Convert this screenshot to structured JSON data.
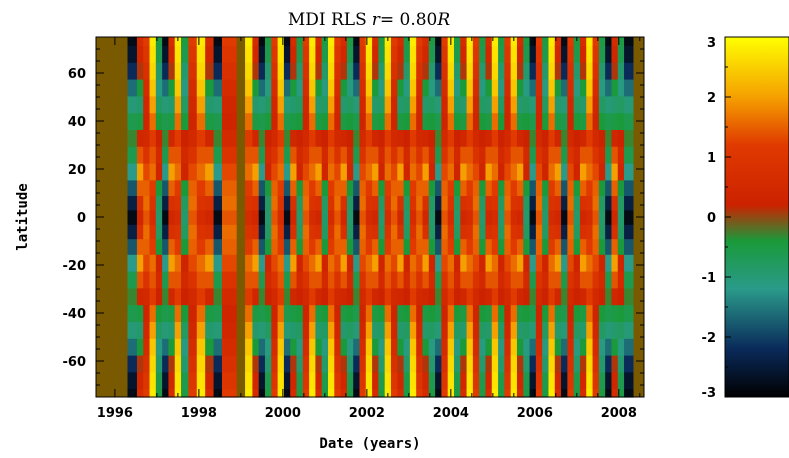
{
  "chart_data": {
    "type": "heatmap",
    "title_parts": {
      "prefix": "MDI RLS",
      "var": "r",
      "eq": "= 0.80",
      "unit": "R"
    },
    "xlabel": "Date (years)",
    "ylabel": "latitude",
    "xlim": [
      1995.55,
      2008.6
    ],
    "ylim": [
      -75,
      75
    ],
    "x_ticks": [
      1996,
      1998,
      2000,
      2002,
      2004,
      2006,
      2008
    ],
    "y_ticks": [
      60,
      40,
      20,
      0,
      -20,
      -40,
      -60
    ],
    "colorbar": {
      "range": [
        -3,
        3
      ],
      "ticks": [
        3,
        2,
        1,
        0,
        -1,
        -2,
        -3
      ],
      "stops": [
        {
          "v": -3,
          "color": "#000000"
        },
        {
          "v": -2.2,
          "color": "#0a2a5a"
        },
        {
          "v": -1.2,
          "color": "#2a9a8a"
        },
        {
          "v": -0.4,
          "color": "#1a9a3a"
        },
        {
          "v": 0.2,
          "color": "#cc2200"
        },
        {
          "v": 1.2,
          "color": "#e03a00"
        },
        {
          "v": 2.0,
          "color": "#f5a000"
        },
        {
          "v": 3,
          "color": "#ffff00"
        }
      ]
    },
    "no_data_color": "#7a5a00",
    "no_data_ranges": [
      [
        1995.55,
        1996.3
      ],
      [
        1998.9,
        1999.1
      ],
      [
        2008.35,
        2008.6
      ]
    ],
    "columns": [
      {
        "t": 1996.45,
        "p": "B"
      },
      {
        "t": 1996.6,
        "p": "A"
      },
      {
        "t": 1996.75,
        "p": "R"
      },
      {
        "t": 1996.9,
        "p": "Y"
      },
      {
        "t": 1997.05,
        "p": "G"
      },
      {
        "t": 1997.2,
        "p": "B"
      },
      {
        "t": 1997.35,
        "p": "A"
      },
      {
        "t": 1997.5,
        "p": "Y"
      },
      {
        "t": 1997.65,
        "p": "G"
      },
      {
        "t": 1997.85,
        "p": "R"
      },
      {
        "t": 1998.05,
        "p": "Y"
      },
      {
        "t": 1998.25,
        "p": "A"
      },
      {
        "t": 1998.45,
        "p": "B"
      },
      {
        "t": 1998.65,
        "p": "R"
      },
      {
        "t": 1999.2,
        "p": "Y"
      },
      {
        "t": 1999.35,
        "p": "A"
      },
      {
        "t": 1999.5,
        "p": "B"
      },
      {
        "t": 1999.65,
        "p": "G"
      },
      {
        "t": 1999.8,
        "p": "R"
      },
      {
        "t": 1999.95,
        "p": "Y"
      },
      {
        "t": 2000.1,
        "p": "B"
      },
      {
        "t": 2000.25,
        "p": "A"
      },
      {
        "t": 2000.4,
        "p": "G"
      },
      {
        "t": 2000.55,
        "p": "R"
      },
      {
        "t": 2000.7,
        "p": "Y"
      },
      {
        "t": 2000.85,
        "p": "A"
      },
      {
        "t": 2001.0,
        "p": "G"
      },
      {
        "t": 2001.15,
        "p": "Y"
      },
      {
        "t": 2001.3,
        "p": "R"
      },
      {
        "t": 2001.45,
        "p": "A"
      },
      {
        "t": 2001.6,
        "p": "G"
      },
      {
        "t": 2001.75,
        "p": "B"
      },
      {
        "t": 2001.9,
        "p": "R"
      },
      {
        "t": 2002.05,
        "p": "Y"
      },
      {
        "t": 2002.2,
        "p": "A"
      },
      {
        "t": 2002.35,
        "p": "G"
      },
      {
        "t": 2002.5,
        "p": "Y"
      },
      {
        "t": 2002.65,
        "p": "R"
      },
      {
        "t": 2002.8,
        "p": "A"
      },
      {
        "t": 2002.95,
        "p": "G"
      },
      {
        "t": 2003.1,
        "p": "Y"
      },
      {
        "t": 2003.25,
        "p": "R"
      },
      {
        "t": 2003.4,
        "p": "A"
      },
      {
        "t": 2003.55,
        "p": "G"
      },
      {
        "t": 2003.7,
        "p": "B"
      },
      {
        "t": 2003.85,
        "p": "R"
      },
      {
        "t": 2004.0,
        "p": "Y"
      },
      {
        "t": 2004.15,
        "p": "G"
      },
      {
        "t": 2004.3,
        "p": "A"
      },
      {
        "t": 2004.45,
        "p": "Y"
      },
      {
        "t": 2004.6,
        "p": "R"
      },
      {
        "t": 2004.75,
        "p": "G"
      },
      {
        "t": 2004.9,
        "p": "A"
      },
      {
        "t": 2005.05,
        "p": "Y"
      },
      {
        "t": 2005.2,
        "p": "G"
      },
      {
        "t": 2005.35,
        "p": "R"
      },
      {
        "t": 2005.5,
        "p": "Y"
      },
      {
        "t": 2005.65,
        "p": "A"
      },
      {
        "t": 2005.8,
        "p": "G"
      },
      {
        "t": 2005.95,
        "p": "B"
      },
      {
        "t": 2006.1,
        "p": "R"
      },
      {
        "t": 2006.25,
        "p": "G"
      },
      {
        "t": 2006.4,
        "p": "Y"
      },
      {
        "t": 2006.55,
        "p": "A"
      },
      {
        "t": 2006.7,
        "p": "B"
      },
      {
        "t": 2006.85,
        "p": "R"
      },
      {
        "t": 2007.0,
        "p": "G"
      },
      {
        "t": 2007.15,
        "p": "A"
      },
      {
        "t": 2007.3,
        "p": "Y"
      },
      {
        "t": 2007.45,
        "p": "R"
      },
      {
        "t": 2007.6,
        "p": "G"
      },
      {
        "t": 2007.75,
        "p": "B"
      },
      {
        "t": 2007.9,
        "p": "A"
      },
      {
        "t": 2008.05,
        "p": "G"
      },
      {
        "t": 2008.2,
        "p": "B"
      }
    ],
    "profiles": {
      "Y": [
        2.8,
        2.7,
        2.6,
        2.4,
        2.0,
        1.6,
        1.2,
        1.4,
        1.6,
        1.2,
        0.9,
        0.6,
        0.9,
        1.2,
        1.6,
        1.4,
        1.2,
        1.6,
        2.0,
        2.4,
        2.6,
        2.7,
        2.8
      ],
      "R": [
        1.2,
        1.0,
        0.8,
        0.6,
        0.4,
        0.3,
        0.5,
        0.9,
        1.3,
        1.5,
        1.6,
        1.4,
        1.6,
        1.5,
        1.3,
        0.9,
        0.5,
        0.3,
        0.4,
        0.6,
        0.8,
        1.0,
        1.2
      ],
      "G": [
        -0.5,
        -0.6,
        -0.9,
        -1.1,
        -0.8,
        -0.4,
        0.2,
        0.5,
        0.3,
        -0.4,
        -0.8,
        -0.9,
        -0.8,
        -0.4,
        0.3,
        0.5,
        0.2,
        -0.4,
        -0.8,
        -1.1,
        -0.9,
        -0.6,
        -0.5
      ],
      "B": [
        -2.8,
        -2.6,
        -2.2,
        -1.6,
        -1.0,
        -0.6,
        -0.3,
        -0.6,
        -1.2,
        -1.8,
        -2.4,
        -2.8,
        -2.4,
        -1.8,
        -1.2,
        -0.6,
        -0.3,
        -0.6,
        -1.0,
        -1.6,
        -2.2,
        -2.6,
        -2.8
      ],
      "A": [
        0.6,
        0.4,
        0.1,
        -0.4,
        -0.9,
        -0.5,
        0.4,
        1.4,
        2.0,
        1.5,
        0.8,
        0.4,
        0.8,
        1.5,
        2.0,
        1.4,
        0.4,
        -0.5,
        -0.9,
        -0.4,
        0.1,
        0.4,
        0.6
      ]
    },
    "profile_latitudes": [
      -75,
      -68,
      -61,
      -54,
      -47,
      -40,
      -33,
      -26,
      -19,
      -12,
      -6,
      0,
      6,
      12,
      19,
      26,
      33,
      40,
      47,
      54,
      61,
      68,
      75
    ]
  }
}
